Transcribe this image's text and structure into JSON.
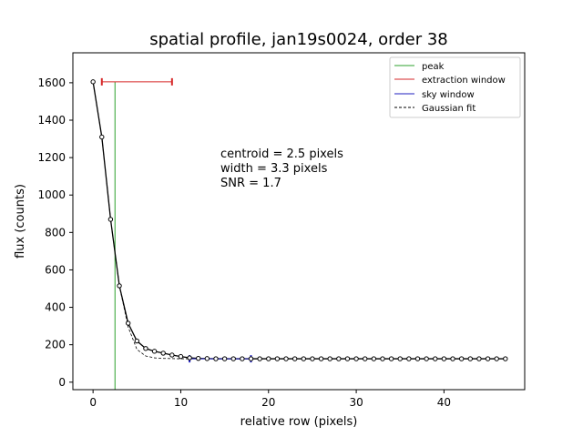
{
  "chart_data": {
    "type": "line",
    "title": "spatial profile, jan19s0024, order 38",
    "xlabel": "relative row (pixels)",
    "ylabel": "flux (counts)",
    "xlim": [
      -2.3,
      49.2
    ],
    "ylim": [
      -40,
      1760
    ],
    "xticks": [
      0,
      10,
      20,
      30,
      40
    ],
    "yticks": [
      0,
      200,
      400,
      600,
      800,
      1000,
      1200,
      1400,
      1600
    ],
    "grid": false,
    "legend_position": "top-right",
    "legend": [
      {
        "key": "peak",
        "label": "peak",
        "color": "#2ca02c",
        "style": "solid"
      },
      {
        "key": "extraction",
        "label": "extraction window",
        "color": "#d62728",
        "style": "solid"
      },
      {
        "key": "sky",
        "label": "sky window",
        "color": "#1f1fbf",
        "style": "solid"
      },
      {
        "key": "gauss",
        "label": "Gaussian fit",
        "color": "#000000",
        "style": "dashed"
      }
    ],
    "annotations": [
      "centroid = 2.5 pixels",
      "width = 3.3 pixels",
      "SNR = 1.7"
    ],
    "peak_x": 2.5,
    "extraction_window": {
      "x_start": 1,
      "x_end": 9,
      "y": 1605
    },
    "sky_window": {
      "x_start": 11,
      "x_end": 18,
      "y": 125
    },
    "series": [
      {
        "name": "profile",
        "color": "#000000",
        "x": [
          0,
          1,
          2,
          3,
          4,
          5,
          6,
          7,
          8,
          9,
          10,
          11,
          12,
          13,
          14,
          15,
          16,
          17,
          18,
          19,
          20,
          21,
          22,
          23,
          24,
          25,
          26,
          27,
          28,
          29,
          30,
          31,
          32,
          33,
          34,
          35,
          36,
          37,
          38,
          39,
          40,
          41,
          42,
          43,
          44,
          45,
          46,
          47
        ],
        "y": [
          1605,
          1310,
          870,
          515,
          315,
          220,
          180,
          165,
          155,
          145,
          137,
          130,
          127,
          126,
          125,
          125,
          125,
          125,
          125,
          125,
          125,
          125,
          125,
          125,
          125,
          125,
          125,
          125,
          125,
          125,
          125,
          125,
          125,
          125,
          125,
          125,
          125,
          125,
          125,
          125,
          125,
          125,
          125,
          125,
          125,
          125,
          125,
          125
        ]
      },
      {
        "name": "Gaussian fit",
        "color": "#000000",
        "style": "dashed",
        "x": [
          0,
          1,
          2,
          3,
          4,
          5,
          6,
          7,
          8,
          9,
          10,
          11,
          12,
          13,
          14,
          15,
          20,
          25,
          30,
          35,
          40,
          45,
          47
        ],
        "y": [
          1605,
          1310,
          870,
          515,
          295,
          175,
          140,
          130,
          127,
          126,
          125,
          125,
          125,
          125,
          125,
          125,
          125,
          125,
          125,
          125,
          125,
          125,
          125
        ]
      }
    ]
  }
}
